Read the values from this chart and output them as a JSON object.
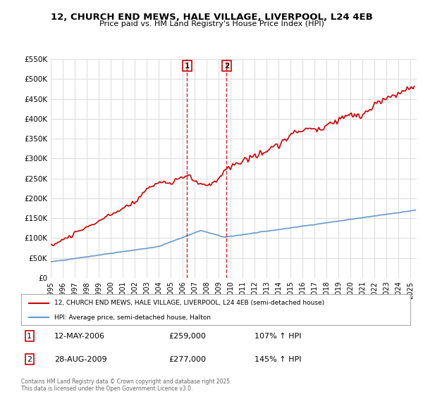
{
  "title_line1": "12, CHURCH END MEWS, HALE VILLAGE, LIVERPOOL, L24 4EB",
  "title_line2": "Price paid vs. HM Land Registry's House Price Index (HPI)",
  "ylabel_ticks": [
    "£0",
    "£50K",
    "£100K",
    "£150K",
    "£200K",
    "£250K",
    "£300K",
    "£350K",
    "£400K",
    "£450K",
    "£500K",
    "£550K"
  ],
  "ylim": [
    0,
    550000
  ],
  "ytick_vals": [
    0,
    50000,
    100000,
    150000,
    200000,
    250000,
    300000,
    350000,
    400000,
    450000,
    500000,
    550000
  ],
  "xlim_start": 1995.0,
  "xlim_end": 2025.5,
  "sale1_x": 2006.36,
  "sale1_y": 259000,
  "sale2_x": 2009.66,
  "sale2_y": 277000,
  "sale1_label": "12-MAY-2006",
  "sale1_price": "£259,000",
  "sale1_hpi": "107% ↑ HPI",
  "sale2_label": "28-AUG-2009",
  "sale2_price": "£277,000",
  "sale2_hpi": "145% ↑ HPI",
  "legend_line1": "12, CHURCH END MEWS, HALE VILLAGE, LIVERPOOL, L24 4EB (semi-detached house)",
  "legend_line2": "HPI: Average price, semi-detached house, Halton",
  "footer": "Contains HM Land Registry data © Crown copyright and database right 2025.\nThis data is licensed under the Open Government Licence v3.0.",
  "red_color": "#cc0000",
  "blue_color": "#6699cc",
  "marker_box_color": "#cc0000",
  "grid_color": "#dddddd",
  "background_color": "#ffffff"
}
